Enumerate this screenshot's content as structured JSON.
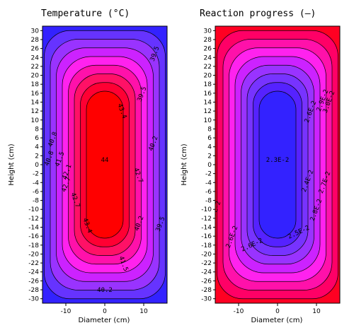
{
  "chart_data": [
    {
      "type": "contour",
      "title": "Temperature (°C)",
      "xlabel": "Diameter (cm)",
      "ylabel": "Height (cm)",
      "xlim": [
        -16,
        16
      ],
      "ylim": [
        -31,
        31
      ],
      "xticks": [
        "-10",
        "0",
        "10"
      ],
      "yticks": [
        "-30",
        "-28",
        "-26",
        "-24",
        "-22",
        "-20",
        "-18",
        "-16",
        "-14",
        "-12",
        "-10",
        "-8",
        "-6",
        "-4",
        "-2",
        "0",
        "2",
        "4",
        "6",
        "8",
        "10",
        "12",
        "14",
        "16",
        "18",
        "20",
        "22",
        "24",
        "26",
        "28",
        "30"
      ],
      "center_value": 44,
      "edge_value": 39.0,
      "shape": "rounded-cylinder",
      "colors": [
        "#3322ff",
        "#6633ff",
        "#9933ff",
        "#cc22ff",
        "#ff22ee",
        "#ff11aa",
        "#ff1166",
        "#ff0033",
        "#ff0000"
      ],
      "contour_labels": [
        "44",
        "43.4",
        "43.4",
        "42.7",
        "42.7",
        "42.7",
        "42.1",
        "41.5",
        "41.5",
        "40.8",
        "40.8",
        "40.2",
        "40.2",
        "40.2",
        "40.2",
        "39.5",
        "39.5",
        "39.5",
        "41.5"
      ]
    },
    {
      "type": "contour",
      "title": "Reaction progress (–)",
      "xlabel": "Diameter (cm)",
      "ylabel": "Height (cm)",
      "xlim": [
        -16,
        16
      ],
      "ylim": [
        -31,
        31
      ],
      "xticks": [
        "-10",
        "0",
        "10"
      ],
      "yticks": [
        "-30",
        "-28",
        "-26",
        "-24",
        "-22",
        "-20",
        "-18",
        "-16",
        "-14",
        "-12",
        "-10",
        "-8",
        "-6",
        "-4",
        "-2",
        "0",
        "2",
        "4",
        "6",
        "8",
        "10",
        "12",
        "14",
        "16",
        "18",
        "20",
        "22",
        "24",
        "26",
        "28",
        "30"
      ],
      "center_value": 0.023,
      "edge_value": 0.03,
      "shape": "rounded-cylinder",
      "colors": [
        "#ff0022",
        "#ff0066",
        "#ff11aa",
        "#ff22ee",
        "#cc22ff",
        "#9933ff",
        "#7733ff",
        "#5522ff",
        "#3322ff"
      ],
      "contour_labels": [
        "2.3E-2",
        "2.4E-2",
        "2.5E-2",
        "2.6E-2",
        "2.6E-2",
        "2.6E-2",
        "2.7E-2",
        "2.7E-2",
        "2.8E-2",
        "2.9E-2",
        "3.0E-2"
      ]
    }
  ]
}
